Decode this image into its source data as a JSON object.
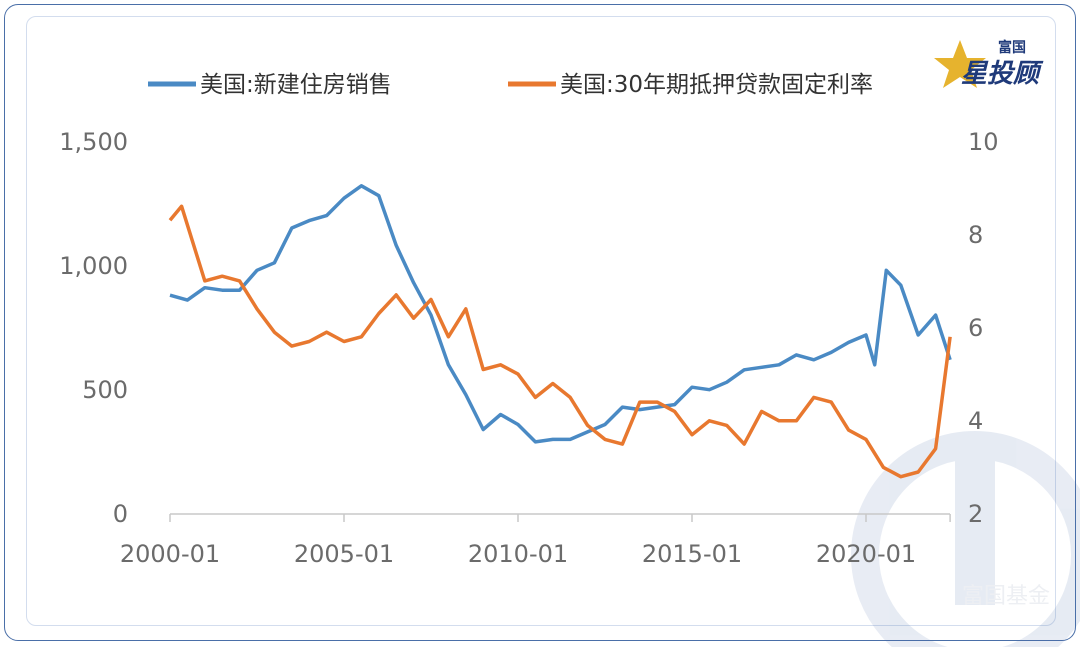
{
  "logo": {
    "top_text": "富国",
    "main_text": "星投顾",
    "watermark_text": "富国基金"
  },
  "colors": {
    "series1": "#4a8ac4",
    "series2": "#e8782f",
    "axis": "#c8c8c8",
    "frame": "#4a6fa8"
  },
  "chart_data": {
    "type": "line",
    "legend_position": "top",
    "grid": false,
    "x_ticks": [
      "2000-01",
      "2005-01",
      "2010-01",
      "2015-01",
      "2020-01"
    ],
    "x_range": [
      "2000-01",
      "2022-06"
    ],
    "y_left_ticks": [
      "0",
      "500",
      "1,000",
      "1,500"
    ],
    "y_left_range": [
      0,
      1500
    ],
    "y_right_ticks": [
      "2",
      "4",
      "6",
      "8",
      "10"
    ],
    "y_right_range": [
      2,
      10
    ],
    "series": [
      {
        "name": "美国:新建住房销售",
        "axis": "left",
        "color": "#4a8ac4",
        "points": [
          [
            "2000-01",
            880
          ],
          [
            "2000-07",
            860
          ],
          [
            "2001-01",
            910
          ],
          [
            "2001-07",
            900
          ],
          [
            "2002-01",
            900
          ],
          [
            "2002-07",
            980
          ],
          [
            "2003-01",
            1010
          ],
          [
            "2003-07",
            1150
          ],
          [
            "2004-01",
            1180
          ],
          [
            "2004-07",
            1200
          ],
          [
            "2005-01",
            1270
          ],
          [
            "2005-07",
            1320
          ],
          [
            "2006-01",
            1280
          ],
          [
            "2006-07",
            1080
          ],
          [
            "2007-01",
            930
          ],
          [
            "2007-07",
            800
          ],
          [
            "2008-01",
            600
          ],
          [
            "2008-07",
            480
          ],
          [
            "2009-01",
            340
          ],
          [
            "2009-07",
            400
          ],
          [
            "2010-01",
            360
          ],
          [
            "2010-07",
            290
          ],
          [
            "2011-01",
            300
          ],
          [
            "2011-07",
            300
          ],
          [
            "2012-01",
            330
          ],
          [
            "2012-07",
            360
          ],
          [
            "2013-01",
            430
          ],
          [
            "2013-07",
            420
          ],
          [
            "2014-01",
            430
          ],
          [
            "2014-07",
            440
          ],
          [
            "2015-01",
            510
          ],
          [
            "2015-07",
            500
          ],
          [
            "2016-01",
            530
          ],
          [
            "2016-07",
            580
          ],
          [
            "2017-01",
            590
          ],
          [
            "2017-07",
            600
          ],
          [
            "2018-01",
            640
          ],
          [
            "2018-07",
            620
          ],
          [
            "2019-01",
            650
          ],
          [
            "2019-07",
            690
          ],
          [
            "2020-01",
            720
          ],
          [
            "2020-04",
            600
          ],
          [
            "2020-08",
            980
          ],
          [
            "2021-01",
            920
          ],
          [
            "2021-07",
            720
          ],
          [
            "2022-01",
            800
          ],
          [
            "2022-06",
            620
          ]
        ]
      },
      {
        "name": "美国:30年期抵押贷款固定利率",
        "axis": "right",
        "color": "#e8782f",
        "points": [
          [
            "2000-01",
            8.3
          ],
          [
            "2000-05",
            8.6
          ],
          [
            "2001-01",
            7.0
          ],
          [
            "2001-07",
            7.1
          ],
          [
            "2002-01",
            7.0
          ],
          [
            "2002-07",
            6.4
          ],
          [
            "2003-01",
            5.9
          ],
          [
            "2003-07",
            5.6
          ],
          [
            "2004-01",
            5.7
          ],
          [
            "2004-07",
            5.9
          ],
          [
            "2005-01",
            5.7
          ],
          [
            "2005-07",
            5.8
          ],
          [
            "2006-01",
            6.3
          ],
          [
            "2006-07",
            6.7
          ],
          [
            "2007-01",
            6.2
          ],
          [
            "2007-07",
            6.6
          ],
          [
            "2008-01",
            5.8
          ],
          [
            "2008-07",
            6.4
          ],
          [
            "2009-01",
            5.1
          ],
          [
            "2009-07",
            5.2
          ],
          [
            "2010-01",
            5.0
          ],
          [
            "2010-07",
            4.5
          ],
          [
            "2011-01",
            4.8
          ],
          [
            "2011-07",
            4.5
          ],
          [
            "2012-01",
            3.9
          ],
          [
            "2012-07",
            3.6
          ],
          [
            "2013-01",
            3.5
          ],
          [
            "2013-07",
            4.4
          ],
          [
            "2014-01",
            4.4
          ],
          [
            "2014-07",
            4.2
          ],
          [
            "2015-01",
            3.7
          ],
          [
            "2015-07",
            4.0
          ],
          [
            "2016-01",
            3.9
          ],
          [
            "2016-07",
            3.5
          ],
          [
            "2017-01",
            4.2
          ],
          [
            "2017-07",
            4.0
          ],
          [
            "2018-01",
            4.0
          ],
          [
            "2018-07",
            4.5
          ],
          [
            "2019-01",
            4.4
          ],
          [
            "2019-07",
            3.8
          ],
          [
            "2020-01",
            3.6
          ],
          [
            "2020-07",
            3.0
          ],
          [
            "2021-01",
            2.8
          ],
          [
            "2021-07",
            2.9
          ],
          [
            "2022-01",
            3.4
          ],
          [
            "2022-06",
            5.8
          ]
        ]
      }
    ]
  }
}
